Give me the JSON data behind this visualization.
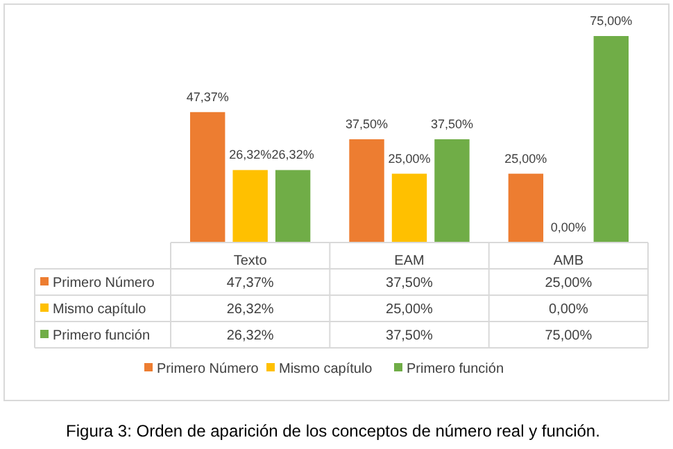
{
  "chart_data": {
    "type": "bar",
    "categories": [
      "Texto",
      "EAM",
      "AMB"
    ],
    "series": [
      {
        "name": "Primero Número",
        "color": "#ed7d31",
        "values": [
          47.37,
          37.5,
          25
        ],
        "value_labels": [
          "47,37%",
          "37,50%",
          "25,00%"
        ]
      },
      {
        "name": "Mismo capítulo",
        "color": "#ffc000",
        "values": [
          26.32,
          25,
          0
        ],
        "value_labels": [
          "26,32%",
          "25,00%",
          "0,00%"
        ]
      },
      {
        "name": "Primero función",
        "color": "#70ad47",
        "values": [
          26.32,
          37.5,
          75
        ],
        "value_labels": [
          "26,32%",
          "37,50%",
          "75,00%"
        ]
      }
    ],
    "legend": "bottom",
    "annotations": [
      "Figura 3: Orden de aparición de los conceptos de número real y función."
    ]
  }
}
